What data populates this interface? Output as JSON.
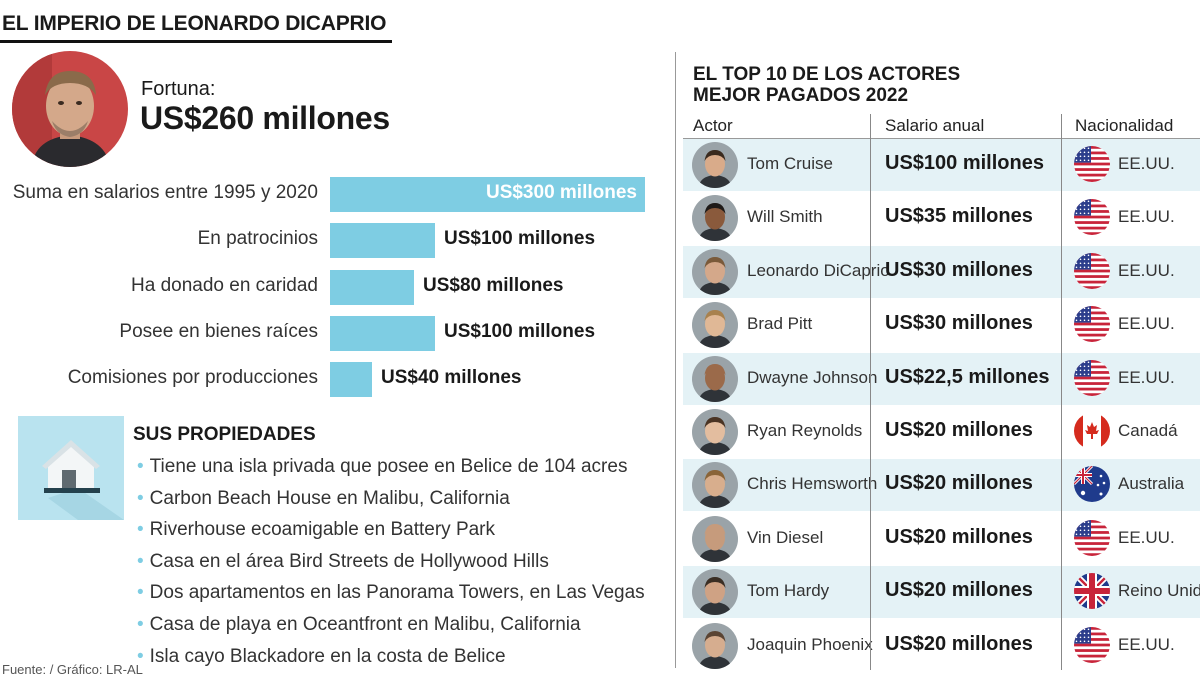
{
  "title": "EL IMPERIO DE LEONARDO DICAPRIO",
  "fortune": {
    "label": "Fortuna:",
    "value": "US$260 millones"
  },
  "chart_data": {
    "type": "bar",
    "orientation": "horizontal",
    "categories": [
      "Suma en salarios entre 1995 y 2020",
      "En patrocinios",
      "Ha donado en caridad",
      "Posee en bienes raíces",
      "Comisiones por producciones"
    ],
    "values": [
      300,
      100,
      80,
      100,
      40
    ],
    "value_labels": [
      "US$300 millones",
      "US$100 millones",
      "US$80 millones",
      "US$100 millones",
      "US$40 millones"
    ],
    "color": "#7ecde3",
    "xlim": [
      0,
      300
    ]
  },
  "properties": {
    "title": "SUS PROPIEDADES",
    "items": [
      "Tiene una isla privada que posee en Belice de 104 acres",
      "Carbon Beach House en Malibu, California",
      "Riverhouse ecoamigable en Battery Park",
      "Casa en el área Bird Streets de Hollywood Hills",
      "Dos apartamentos en las Panorama Towers, en Las Vegas",
      "Casa de playa en Oceantfront en Malibu, California",
      "Isla cayo Blackadore en la costa de Belice"
    ]
  },
  "source": "Fuente: / Gráfico: LR-AL",
  "top10": {
    "title_line1": "EL TOP 10 DE LOS ACTORES",
    "title_line2": "MEJOR PAGADOS 2022",
    "headers": {
      "actor": "Actor",
      "salary": "Salario anual",
      "nationality": "Nacionalidad"
    },
    "rows": [
      {
        "actor": "Tom Cruise",
        "salary": "US$100 millones",
        "nationality": "EE.UU.",
        "flag": "us-flag-icon"
      },
      {
        "actor": "Will Smith",
        "salary": "US$35 millones",
        "nationality": "EE.UU.",
        "flag": "us-flag-icon"
      },
      {
        "actor": "Leonardo DiCaprio",
        "salary": "US$30 millones",
        "nationality": "EE.UU.",
        "flag": "us-flag-icon"
      },
      {
        "actor": "Brad Pitt",
        "salary": "US$30 millones",
        "nationality": "EE.UU.",
        "flag": "us-flag-icon"
      },
      {
        "actor": "Dwayne Johnson",
        "salary": "US$22,5 millones",
        "nationality": "EE.UU.",
        "flag": "us-flag-icon"
      },
      {
        "actor": "Ryan Reynolds",
        "salary": "US$20 millones",
        "nationality": "Canadá",
        "flag": "canada-flag-icon"
      },
      {
        "actor": "Chris Hemsworth",
        "salary": "US$20 millones",
        "nationality": "Australia",
        "flag": "australia-flag-icon"
      },
      {
        "actor": "Vin Diesel",
        "salary": "US$20 millones",
        "nationality": "EE.UU.",
        "flag": "us-flag-icon"
      },
      {
        "actor": "Tom Hardy",
        "salary": "US$20 millones",
        "nationality": "Reino Unido",
        "flag": "uk-flag-icon"
      },
      {
        "actor": "Joaquin Phoenix",
        "salary": "US$20 millones",
        "nationality": "EE.UU.",
        "flag": "us-flag-icon"
      }
    ]
  }
}
